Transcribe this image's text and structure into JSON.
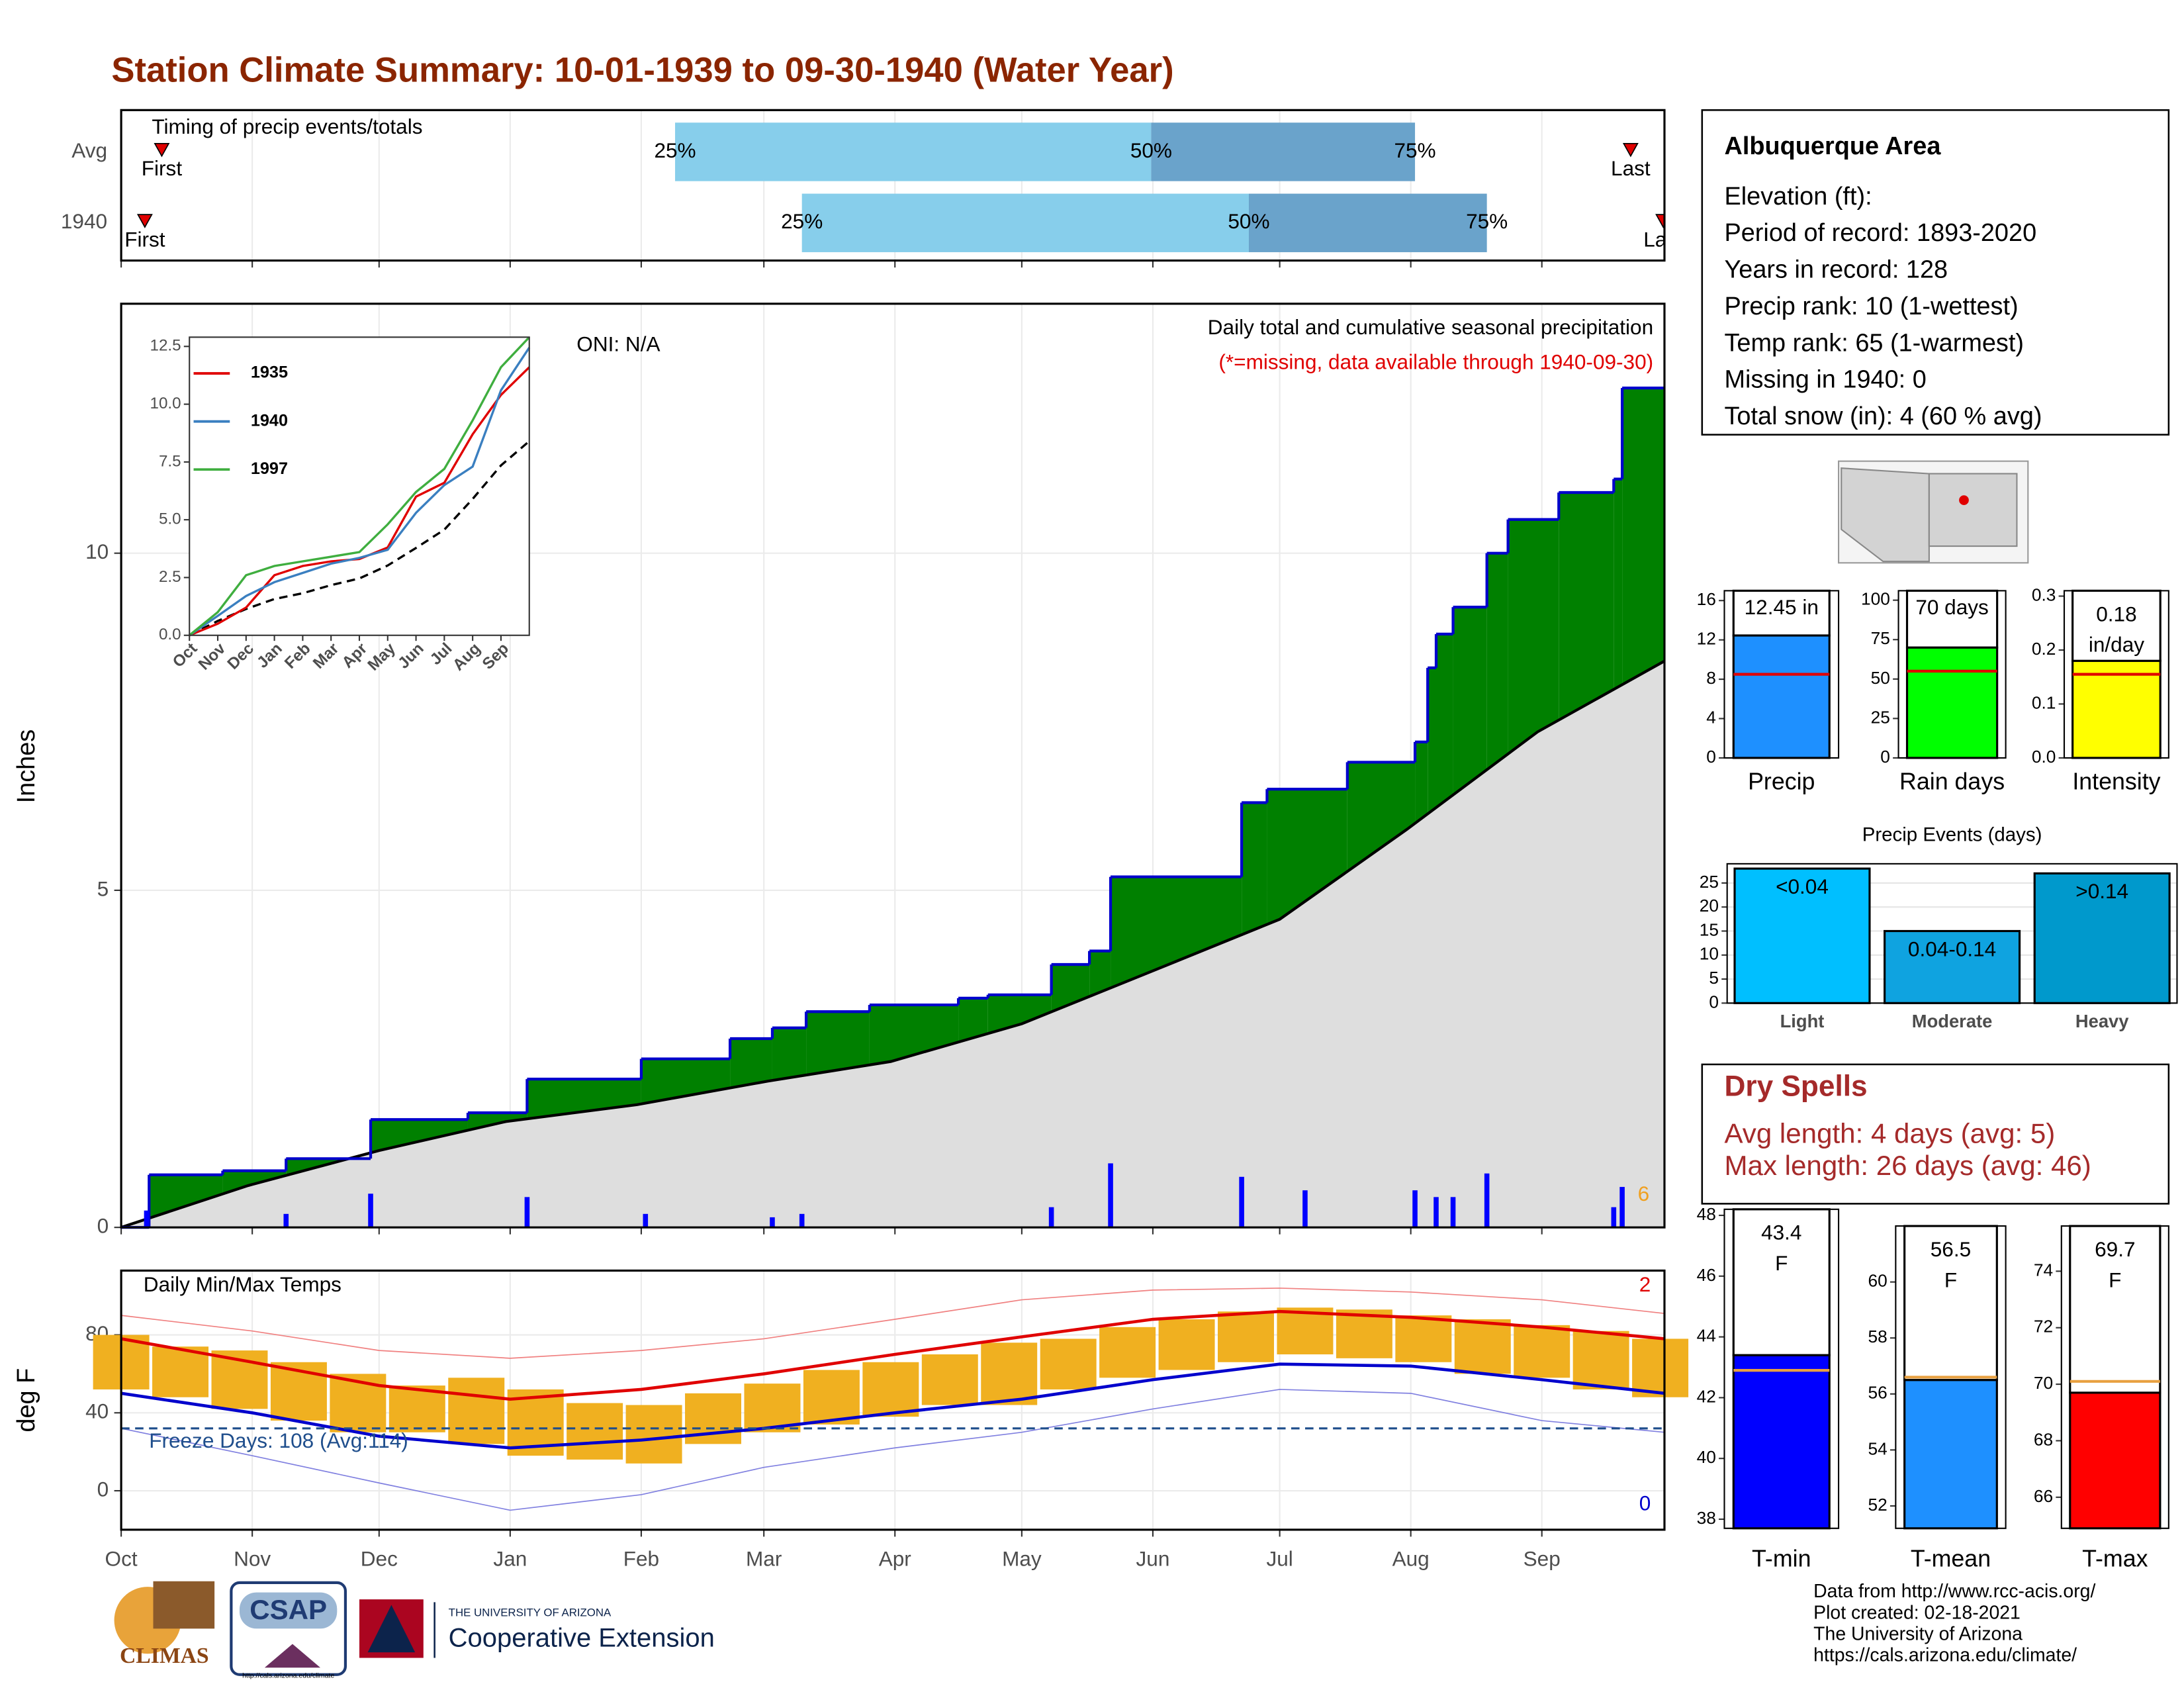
{
  "title": "Station Climate Summary: 10-01-1939 to 09-30-1940 (Water Year)",
  "months": [
    {
      "value": 0,
      "label": "Oct"
    },
    {
      "value": 31,
      "label": "Nov"
    },
    {
      "value": 61,
      "label": "Dec"
    },
    {
      "value": 92,
      "label": "Jan"
    },
    {
      "value": 123,
      "label": "Feb"
    },
    {
      "value": 152,
      "label": "Mar"
    },
    {
      "value": 183,
      "label": "Apr"
    },
    {
      "value": 213,
      "label": "May"
    },
    {
      "value": 244,
      "label": "Jun"
    },
    {
      "value": 274,
      "label": "Jul"
    },
    {
      "value": 305,
      "label": "Aug"
    },
    {
      "value": 336,
      "label": "Sep"
    }
  ],
  "info": {
    "title": "Albuquerque Area",
    "lines": [
      "Elevation (ft):",
      "Period of record: 1893-2020",
      "Years in record: 128",
      "Precip rank: 10 (1-wettest)",
      "Temp rank: 65 (1-warmest)",
      "Missing in 1940: 0",
      "Total snow (in): 4 (60 % avg)"
    ]
  },
  "dry_spells": {
    "title": "Dry Spells",
    "lines": [
      "Avg length: 4 days (avg: 5)",
      "Max length: 26 days (avg: 46)"
    ]
  },
  "footer": [
    "Data from http://www.rcc-acis.org/",
    "Plot created: 02-18-2021",
    "The University of Arizona",
    "https://cals.arizona.edu/climate/"
  ],
  "logos": {
    "climas": "CLIMAS",
    "csap": "CSAP",
    "csap_url": "http://cals.arizona.edu/climate",
    "ua_small": "THE UNIVERSITY OF ARIZONA",
    "ua_big": "Cooperative Extension"
  },
  "chart_data": [
    {
      "type": "timing",
      "title": "Timing of precip events/totals",
      "xlim": [
        0,
        365
      ],
      "q_labels": [
        "25%",
        "50%",
        "75%"
      ],
      "colors": [
        "#87ceeb",
        "#6aa3cb"
      ],
      "marker_color": "#e00000",
      "rows": [
        {
          "name": "Avg",
          "first": 9.6,
          "q25": 131,
          "q50": 243.6,
          "q75": 306,
          "last": 357,
          "first_label": "First",
          "last_label": "Last"
        },
        {
          "name": "1940",
          "first": 5.6,
          "q25": 161,
          "q50": 266.7,
          "q75": 323,
          "last": 364.7,
          "first_label": "First",
          "last_label": "Last"
        }
      ]
    },
    {
      "type": "cumulative",
      "ylabel": "Inches",
      "xlim": [
        0,
        365
      ],
      "ylim": [
        0,
        13.7
      ],
      "yticks": [
        0,
        5,
        10
      ],
      "grid": true,
      "annotation": "ONI: N/A",
      "subtitle": "Daily total and cumulative seasonal precipitation",
      "note": "(*=missing, data available through 1940-09-30)",
      "count_label": "6",
      "cumulative_1940": {
        "color": "#008000",
        "line_color": "#0000cc",
        "x": [
          0,
          6.6,
          24,
          39,
          59,
          82,
          96,
          123,
          144,
          154,
          162,
          177,
          198,
          205,
          220,
          229,
          234,
          265,
          271,
          290,
          306,
          309,
          311,
          315,
          323,
          328,
          340,
          353,
          355
        ],
        "values": [
          0,
          0.78,
          0.84,
          1.02,
          1.6,
          1.7,
          2.2,
          2.5,
          2.8,
          2.96,
          3.2,
          3.3,
          3.4,
          3.45,
          3.9,
          4.1,
          5.2,
          6.3,
          6.5,
          6.9,
          7.2,
          8.3,
          8.8,
          9.2,
          10.0,
          10.5,
          10.9,
          11.1,
          12.45
        ]
      },
      "cumulative_avg": {
        "color": "#dedede",
        "line_color": "#000000",
        "x": [
          0,
          30,
          61,
          91,
          122,
          153,
          182,
          213,
          243,
          274,
          304,
          335,
          365
        ],
        "values": [
          0,
          0.62,
          1.14,
          1.57,
          1.82,
          2.17,
          2.46,
          3.02,
          3.78,
          4.57,
          5.9,
          7.35,
          8.4
        ]
      },
      "daily": {
        "color": "#0000ff",
        "x": [
          6,
          39,
          59,
          96,
          124,
          154,
          161,
          220,
          234,
          265,
          280,
          306,
          311,
          315,
          323,
          353,
          355
        ],
        "values": [
          0.25,
          0.2,
          0.5,
          0.45,
          0.2,
          0.15,
          0.2,
          0.3,
          0.95,
          0.75,
          0.55,
          0.55,
          0.45,
          0.45,
          0.8,
          0.3,
          0.6
        ]
      }
    },
    {
      "type": "line",
      "x": [
        0,
        1,
        2,
        3,
        4,
        5,
        6,
        7,
        8,
        9,
        10,
        11,
        12
      ],
      "xlim": [
        0,
        12
      ],
      "xticks": [
        {
          "value": 0,
          "label": "Oct"
        },
        {
          "value": 1,
          "label": "Nov"
        },
        {
          "value": 2,
          "label": "Dec"
        },
        {
          "value": 3,
          "label": "Jan"
        },
        {
          "value": 4,
          "label": "Feb"
        },
        {
          "value": 5,
          "label": "Mar"
        },
        {
          "value": 6,
          "label": "Apr"
        },
        {
          "value": 7,
          "label": "May"
        },
        {
          "value": 8,
          "label": "Jun"
        },
        {
          "value": 9,
          "label": "Jul"
        },
        {
          "value": 10,
          "label": "Aug"
        },
        {
          "value": 11,
          "label": "Sep"
        }
      ],
      "ylim": [
        0,
        12.9
      ],
      "yticks": [
        {
          "value": 0,
          "label": "0.0"
        },
        {
          "value": 2.5,
          "label": "2.5"
        },
        {
          "value": 5,
          "label": "5.0"
        },
        {
          "value": 7.5,
          "label": "7.5"
        },
        {
          "value": 10,
          "label": "10.0"
        },
        {
          "value": 12.5,
          "label": "12.5"
        }
      ],
      "series": [
        {
          "name": "1935",
          "color": "#e00000",
          "values": [
            0,
            0.5,
            1.2,
            2.6,
            3.0,
            3.2,
            3.3,
            3.8,
            6.0,
            6.6,
            8.7,
            10.4,
            11.6
          ]
        },
        {
          "name": "1940",
          "color": "#3a7fc0",
          "values": [
            0,
            0.84,
            1.7,
            2.3,
            2.7,
            3.1,
            3.35,
            3.7,
            5.3,
            6.5,
            7.3,
            10.6,
            12.45
          ]
        },
        {
          "name": "1997",
          "color": "#3fae3f",
          "values": [
            0,
            1.0,
            2.6,
            3.0,
            3.2,
            3.4,
            3.6,
            4.8,
            6.2,
            7.2,
            9.3,
            11.6,
            12.9
          ]
        }
      ],
      "average": {
        "color": "#000000",
        "values": [
          0,
          0.62,
          1.14,
          1.57,
          1.82,
          2.17,
          2.46,
          3.02,
          3.78,
          4.57,
          5.9,
          7.35,
          8.4
        ]
      }
    },
    {
      "type": "temperature",
      "title": "Daily Min/Max Temps",
      "ylabel": "deg F",
      "xlim": [
        0,
        365
      ],
      "ylim": [
        -20,
        113
      ],
      "yticks": [
        0,
        40,
        80
      ],
      "grid": true,
      "x": [
        0,
        31,
        61,
        92,
        123,
        152,
        183,
        213,
        244,
        274,
        305,
        336,
        365
      ],
      "avg_max": {
        "color": "#e00000",
        "values": [
          78,
          66,
          54,
          47,
          52,
          60,
          70,
          79,
          88,
          92,
          89,
          84,
          78
        ]
      },
      "avg_min": {
        "color": "#0000cc",
        "values": [
          50,
          40,
          28,
          22,
          26,
          32,
          40,
          47,
          57,
          65,
          64,
          57,
          50
        ]
      },
      "record_max": {
        "color": "#f08080",
        "values": [
          90,
          82,
          72,
          68,
          72,
          78,
          88,
          98,
          103,
          104,
          102,
          98,
          91
        ]
      },
      "record_min": {
        "color": "#8080e0",
        "values": [
          32,
          18,
          4,
          -10,
          -2,
          12,
          22,
          30,
          42,
          52,
          50,
          36,
          30
        ]
      },
      "daily": {
        "color": "#f0b020",
        "x": [
          0,
          14,
          28,
          42,
          56,
          70,
          84,
          98,
          112,
          126,
          140,
          154,
          168,
          182,
          196,
          210,
          224,
          238,
          252,
          266,
          280,
          294,
          308,
          322,
          336,
          350,
          364
        ],
        "high": [
          80,
          74,
          72,
          66,
          60,
          54,
          58,
          52,
          45,
          44,
          50,
          55,
          62,
          66,
          70,
          76,
          78,
          84,
          88,
          92,
          94,
          93,
          90,
          88,
          85,
          82,
          78
        ],
        "low": [
          52,
          48,
          42,
          36,
          30,
          30,
          24,
          18,
          16,
          14,
          24,
          30,
          34,
          38,
          44,
          44,
          52,
          58,
          62,
          66,
          70,
          68,
          66,
          60,
          58,
          52,
          48
        ]
      },
      "freeze_line": 32,
      "freeze_color": "#1f4e8c",
      "freeze_label": "Freeze Days: 108 (Avg:114)",
      "count_high": "2",
      "count_low": "0"
    },
    {
      "type": "bar",
      "categories": [
        "Precip"
      ],
      "values": [
        12.45
      ],
      "value_labels": [
        "12.45 in"
      ],
      "average": [
        8.5
      ],
      "ylim": [
        0,
        17
      ],
      "yticks": [
        0,
        4,
        8,
        12,
        16
      ],
      "color": "#1e90ff",
      "avg_color": "#e00000"
    },
    {
      "type": "bar",
      "categories": [
        "Rain days"
      ],
      "values": [
        70
      ],
      "value_labels": [
        "70 days"
      ],
      "average": [
        55
      ],
      "ylim": [
        0,
        106
      ],
      "yticks": [
        0,
        25,
        50,
        75,
        100
      ],
      "color": "#00ff00",
      "avg_color": "#e00000"
    },
    {
      "type": "bar",
      "categories": [
        "Intensity"
      ],
      "values": [
        0.18
      ],
      "value_labels": [
        "0.18 in/day"
      ],
      "average": [
        0.155
      ],
      "ylim": [
        0,
        0.31
      ],
      "yticks": [
        {
          "value": 0,
          "label": "0.0"
        },
        {
          "value": 0.1,
          "label": "0.1"
        },
        {
          "value": 0.2,
          "label": "0.2"
        },
        {
          "value": 0.3,
          "label": "0.3"
        }
      ],
      "color": "#ffff00",
      "avg_color": "#e00000"
    },
    {
      "type": "bar",
      "title": "Precip Events (days)",
      "categories": [
        "Light",
        "Moderate",
        "Heavy"
      ],
      "values": [
        28,
        15,
        27
      ],
      "bar_labels": [
        "<0.04",
        "0.04-0.14",
        ">0.14"
      ],
      "colors": [
        "#00bfff",
        "#0fa3e0",
        "#0099cc"
      ],
      "ylim": [
        0,
        29
      ],
      "yticks": [
        0,
        5,
        10,
        15,
        20,
        25
      ],
      "grid": true
    },
    {
      "type": "bar",
      "categories": [
        "T-min"
      ],
      "values": [
        43.4
      ],
      "value_labels": [
        "43.4 F"
      ],
      "average": [
        42.9
      ],
      "ylim": [
        37.7,
        48.2
      ],
      "yticks": [
        38,
        40,
        42,
        44,
        46,
        48
      ],
      "color": "#0000ff",
      "avg_color": "#e8a040"
    },
    {
      "type": "bar",
      "categories": [
        "T-mean"
      ],
      "values": [
        56.5
      ],
      "value_labels": [
        "56.5 F"
      ],
      "average": [
        56.6
      ],
      "ylim": [
        51.2,
        62.0
      ],
      "yticks": [
        52,
        54,
        56,
        58,
        60
      ],
      "color": "#1e90ff",
      "avg_color": "#e8a040"
    },
    {
      "type": "bar",
      "categories": [
        "T-max"
      ],
      "values": [
        69.7
      ],
      "value_labels": [
        "69.7 F"
      ],
      "average": [
        70.1
      ],
      "ylim": [
        64.9,
        75.6
      ],
      "yticks": [
        66,
        68,
        70,
        72,
        74
      ],
      "color": "#ff0000",
      "avg_color": "#e8a040"
    }
  ]
}
